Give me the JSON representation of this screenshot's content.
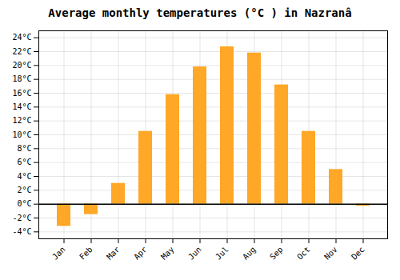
{
  "chart_data": {
    "type": "bar",
    "title": "Average monthly temperatures (°C ) in Nazranâ",
    "categories": [
      "Jan",
      "Feb",
      "Mar",
      "Apr",
      "May",
      "Jun",
      "Jul",
      "Aug",
      "Sep",
      "Oct",
      "Nov",
      "Dec"
    ],
    "values": [
      -3.2,
      -1.5,
      3.0,
      10.5,
      15.8,
      19.8,
      22.7,
      21.8,
      17.2,
      10.5,
      5.0,
      -0.3
    ],
    "color": "#FFA726",
    "ylim": [
      -5,
      25
    ],
    "yticks": [
      {
        "value": -4,
        "label": "-4°C"
      },
      {
        "value": -2,
        "label": "-2°C"
      },
      {
        "value": 0,
        "label": "0°C"
      },
      {
        "value": 2,
        "label": "2°C"
      },
      {
        "value": 4,
        "label": "4°C"
      },
      {
        "value": 6,
        "label": "6°C"
      },
      {
        "value": 8,
        "label": "8°C"
      },
      {
        "value": 10,
        "label": "10°C"
      },
      {
        "value": 12,
        "label": "12°C"
      },
      {
        "value": 14,
        "label": "14°C"
      },
      {
        "value": 16,
        "label": "16°C"
      },
      {
        "value": 18,
        "label": "18°C"
      },
      {
        "value": 20,
        "label": "20°C"
      },
      {
        "value": 22,
        "label": "22°C"
      },
      {
        "value": 24,
        "label": "24°C"
      }
    ],
    "grid": true
  }
}
